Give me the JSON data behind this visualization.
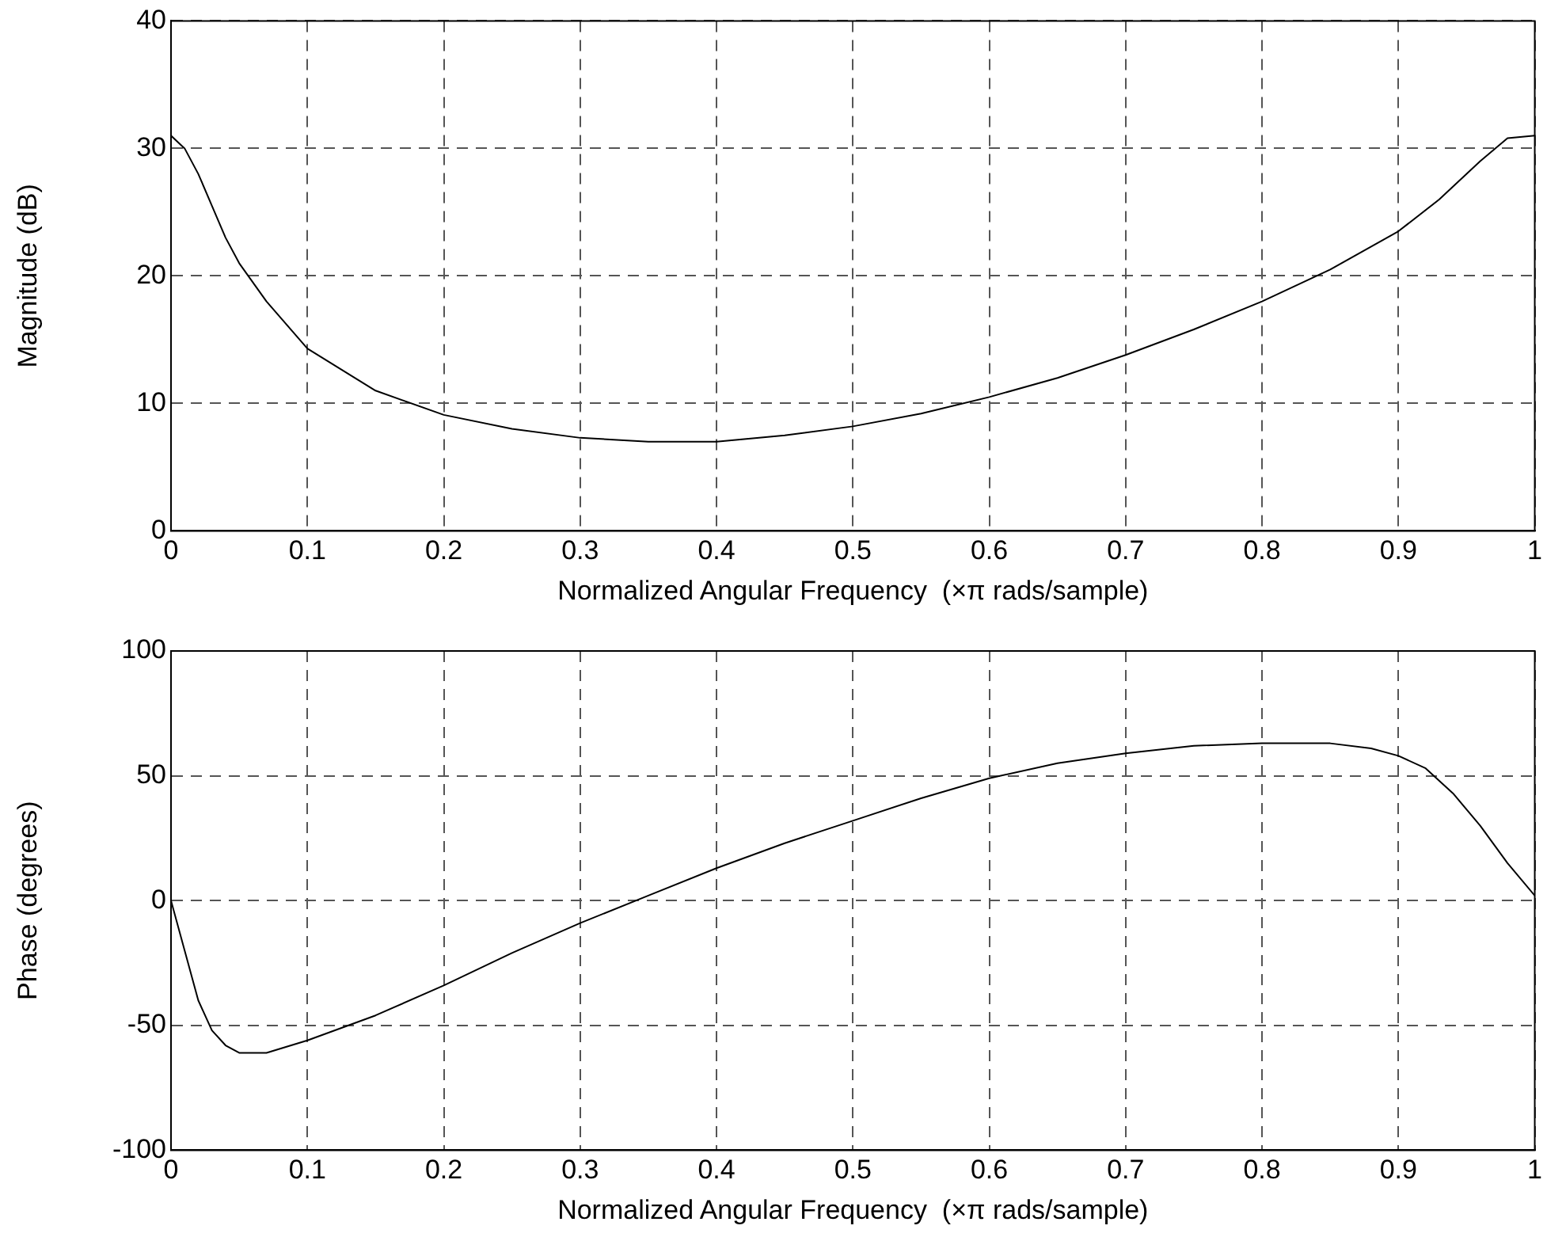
{
  "chart_data": [
    {
      "type": "line",
      "xlabel": "Normalized Angular Frequency  (×π rads/sample)",
      "ylabel": "Magnitude (dB)",
      "xlim": [
        0,
        1
      ],
      "ylim": [
        0,
        40
      ],
      "xticks": [
        0,
        0.1,
        0.2,
        0.3,
        0.4,
        0.5,
        0.6,
        0.7,
        0.8,
        0.9,
        1
      ],
      "yticks": [
        0,
        10,
        20,
        30,
        40
      ],
      "grid": true,
      "legend": false,
      "marker": "none",
      "line_style": "solid",
      "x": [
        0,
        0.01,
        0.02,
        0.03,
        0.04,
        0.05,
        0.07,
        0.1,
        0.15,
        0.2,
        0.25,
        0.3,
        0.35,
        0.4,
        0.45,
        0.5,
        0.55,
        0.6,
        0.65,
        0.7,
        0.75,
        0.8,
        0.85,
        0.9,
        0.93,
        0.96,
        0.98,
        1
      ],
      "series": [
        {
          "color": "#000000",
          "values": [
            31,
            30,
            28,
            25.5,
            23,
            21,
            18,
            14.3,
            11,
            9.1,
            8,
            7.3,
            7,
            7,
            7.5,
            8.2,
            9.2,
            10.5,
            12,
            13.8,
            15.8,
            18,
            20.5,
            23.5,
            26,
            29,
            30.8,
            31
          ]
        }
      ]
    },
    {
      "type": "line",
      "xlabel": "Normalized Angular Frequency  (×π rads/sample)",
      "ylabel": "Phase (degrees)",
      "xlim": [
        0,
        1
      ],
      "ylim": [
        -100,
        100
      ],
      "xticks": [
        0,
        0.1,
        0.2,
        0.3,
        0.4,
        0.5,
        0.6,
        0.7,
        0.8,
        0.9,
        1
      ],
      "yticks": [
        -100,
        -50,
        0,
        50,
        100
      ],
      "grid": true,
      "legend": false,
      "marker": "none",
      "line_style": "solid",
      "x": [
        0,
        0.01,
        0.02,
        0.03,
        0.04,
        0.05,
        0.07,
        0.1,
        0.15,
        0.2,
        0.25,
        0.3,
        0.35,
        0.4,
        0.45,
        0.5,
        0.55,
        0.6,
        0.65,
        0.7,
        0.75,
        0.8,
        0.85,
        0.88,
        0.9,
        0.92,
        0.94,
        0.96,
        0.98,
        1
      ],
      "series": [
        {
          "color": "#000000",
          "values": [
            0,
            -20,
            -40,
            -52,
            -58,
            -61,
            -61,
            -56,
            -46,
            -34,
            -21,
            -9,
            2,
            13,
            23,
            32,
            41,
            49,
            55,
            59,
            62,
            63,
            63,
            61,
            58,
            53,
            43,
            30,
            15,
            2
          ]
        }
      ]
    }
  ]
}
